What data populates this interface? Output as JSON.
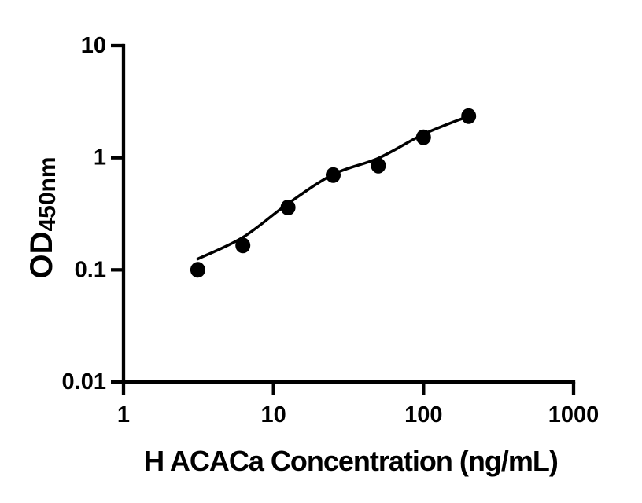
{
  "figure": {
    "background_color": "#ffffff",
    "ink_color": "#000000"
  },
  "chart_data": {
    "type": "scatter",
    "title": "",
    "xlabel": "H ACACa Concentration (ng/mL)",
    "ylabel": "OD",
    "ylabel_subscript": "450nm",
    "x_scale": "log",
    "y_scale": "log",
    "xlim": [
      1,
      1000
    ],
    "ylim": [
      0.01,
      10
    ],
    "x_ticks": [
      1,
      10,
      100,
      1000
    ],
    "x_tick_labels": [
      "1",
      "10",
      "100",
      "1000"
    ],
    "y_ticks": [
      0.01,
      0.1,
      1,
      10
    ],
    "y_tick_labels": [
      "0.01",
      "0.1",
      "1",
      "10"
    ],
    "grid": false,
    "legend_position": "none",
    "series": [
      {
        "name": "standard-points",
        "type": "scatter",
        "marker": "filled-circle",
        "x": [
          3.125,
          6.25,
          12.5,
          25,
          50,
          100,
          200
        ],
        "y": [
          0.1,
          0.165,
          0.36,
          0.7,
          0.85,
          1.52,
          2.35
        ]
      },
      {
        "name": "fit-curve",
        "type": "line",
        "x": [
          3.125,
          6.25,
          12.5,
          25,
          50,
          100,
          200
        ],
        "y": [
          0.125,
          0.195,
          0.39,
          0.71,
          0.99,
          1.62,
          2.35
        ]
      }
    ]
  }
}
